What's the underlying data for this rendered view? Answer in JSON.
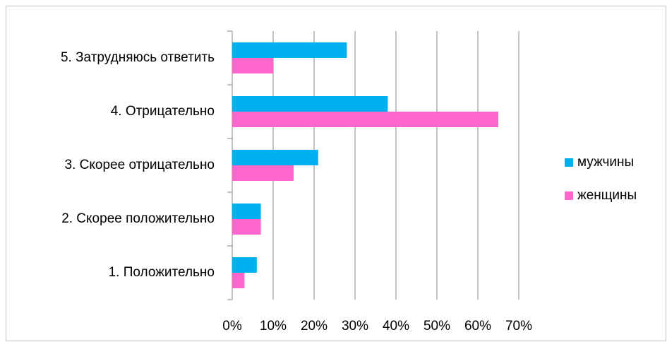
{
  "chart_data": {
    "type": "bar",
    "orientation": "horizontal",
    "categories": [
      "1. Положительно",
      "2. Скорее положительно",
      "3. Скорее отрицательно",
      "4. Отрицательно",
      "5. Затрудняюсь ответить"
    ],
    "series": [
      {
        "name": "мужчины",
        "color": "#00b0f0",
        "values": [
          6,
          7,
          21,
          38,
          28
        ]
      },
      {
        "name": "женщины",
        "color": "#ff66cc",
        "values": [
          3,
          7,
          15,
          65,
          10
        ]
      }
    ],
    "xlim": [
      0,
      70
    ],
    "xticks": [
      {
        "value": 0,
        "label": "0%"
      },
      {
        "value": 10,
        "label": "10%"
      },
      {
        "value": 20,
        "label": "20%"
      },
      {
        "value": 30,
        "label": "30%"
      },
      {
        "value": 40,
        "label": "40%"
      },
      {
        "value": 50,
        "label": "50%"
      },
      {
        "value": 60,
        "label": "60%"
      },
      {
        "value": 70,
        "label": "70%"
      }
    ],
    "grid": true,
    "legend": "right"
  }
}
